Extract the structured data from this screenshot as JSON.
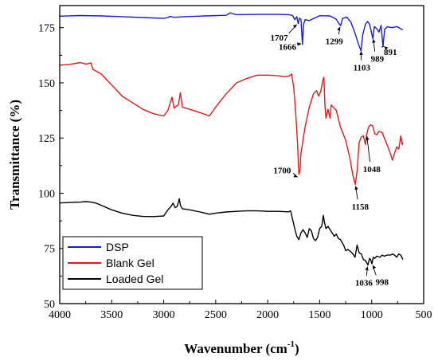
{
  "chart_data": {
    "type": "line",
    "xlabel": "Wavenumber (cm",
    "xlabel_sup": "-1",
    "xlabel_tail": ")",
    "ylabel": "Transmittance (%)",
    "xlim": [
      4000,
      500
    ],
    "ylim": [
      50,
      185
    ],
    "x_ticks": [
      4000,
      3500,
      3000,
      2500,
      2000,
      1500,
      1000,
      500
    ],
    "y_ticks": [
      50,
      75,
      100,
      125,
      150,
      175
    ],
    "grid": false,
    "legend_position": "bottom-left",
    "series": [
      {
        "name": "DSP",
        "color": "#1a1ad6",
        "points": [
          [
            4000,
            180.2
          ],
          [
            3800,
            180.5
          ],
          [
            3600,
            180.3
          ],
          [
            3400,
            180.0
          ],
          [
            3200,
            179.6
          ],
          [
            3000,
            179.2
          ],
          [
            2960,
            179.6
          ],
          [
            2940,
            180.1
          ],
          [
            2900,
            179.7
          ],
          [
            2800,
            180.0
          ],
          [
            2600,
            180.3
          ],
          [
            2400,
            180.6
          ],
          [
            2360,
            181.7
          ],
          [
            2340,
            181.4
          ],
          [
            2300,
            180.9
          ],
          [
            2100,
            181.0
          ],
          [
            1900,
            181.0
          ],
          [
            1800,
            180.9
          ],
          [
            1760,
            180.5
          ],
          [
            1740,
            178.6
          ],
          [
            1720,
            180.0
          ],
          [
            1707,
            176.8
          ],
          [
            1695,
            179.3
          ],
          [
            1680,
            178.8
          ],
          [
            1666,
            167.4
          ],
          [
            1655,
            176.5
          ],
          [
            1640,
            178.6
          ],
          [
            1600,
            178.2
          ],
          [
            1500,
            180.4
          ],
          [
            1400,
            180.3
          ],
          [
            1340,
            178.8
          ],
          [
            1320,
            177.2
          ],
          [
            1299,
            175.9
          ],
          [
            1280,
            179.2
          ],
          [
            1240,
            179.8
          ],
          [
            1200,
            177.5
          ],
          [
            1160,
            172.5
          ],
          [
            1130,
            168.0
          ],
          [
            1103,
            164.5
          ],
          [
            1085,
            172.0
          ],
          [
            1060,
            176.5
          ],
          [
            1040,
            177.8
          ],
          [
            1020,
            176.6
          ],
          [
            1000,
            172.5
          ],
          [
            989,
            170.0
          ],
          [
            975,
            175.5
          ],
          [
            950,
            174.5
          ],
          [
            930,
            173.0
          ],
          [
            910,
            176.0
          ],
          [
            891,
            166.5
          ],
          [
            875,
            174.2
          ],
          [
            850,
            175.4
          ],
          [
            800,
            175.0
          ],
          [
            760,
            175.5
          ],
          [
            720,
            174.5
          ],
          [
            700,
            174.0
          ]
        ]
      },
      {
        "name": "Blank Gel",
        "color": "#e31a1c",
        "points": [
          [
            4000,
            158.0
          ],
          [
            3900,
            158.4
          ],
          [
            3800,
            159.2
          ],
          [
            3750,
            158.5
          ],
          [
            3700,
            159.0
          ],
          [
            3680,
            156.0
          ],
          [
            3600,
            154.0
          ],
          [
            3500,
            149.0
          ],
          [
            3400,
            144.0
          ],
          [
            3300,
            141.0
          ],
          [
            3200,
            138.0
          ],
          [
            3100,
            136.0
          ],
          [
            3000,
            135.0
          ],
          [
            2960,
            137.5
          ],
          [
            2920,
            143.5
          ],
          [
            2900,
            138.5
          ],
          [
            2880,
            139.5
          ],
          [
            2860,
            140.0
          ],
          [
            2840,
            145.5
          ],
          [
            2820,
            139.0
          ],
          [
            2750,
            138.0
          ],
          [
            2650,
            136.5
          ],
          [
            2560,
            135.0
          ],
          [
            2500,
            139.0
          ],
          [
            2400,
            145.0
          ],
          [
            2300,
            150.0
          ],
          [
            2200,
            152.0
          ],
          [
            2100,
            153.5
          ],
          [
            2000,
            153.5
          ],
          [
            1900,
            153.2
          ],
          [
            1850,
            152.8
          ],
          [
            1800,
            153.0
          ],
          [
            1770,
            154.0
          ],
          [
            1750,
            148.0
          ],
          [
            1730,
            136.0
          ],
          [
            1715,
            124.0
          ],
          [
            1700,
            108.5
          ],
          [
            1690,
            110.0
          ],
          [
            1680,
            118.0
          ],
          [
            1660,
            124.0
          ],
          [
            1640,
            130.0
          ],
          [
            1600,
            139.0
          ],
          [
            1560,
            145.0
          ],
          [
            1530,
            146.5
          ],
          [
            1510,
            144.0
          ],
          [
            1490,
            146.0
          ],
          [
            1470,
            151.0
          ],
          [
            1460,
            152.5
          ],
          [
            1450,
            140.0
          ],
          [
            1440,
            134.0
          ],
          [
            1420,
            138.0
          ],
          [
            1400,
            134.0
          ],
          [
            1390,
            140.0
          ],
          [
            1370,
            139.0
          ],
          [
            1340,
            137.5
          ],
          [
            1300,
            130.0
          ],
          [
            1250,
            124.0
          ],
          [
            1210,
            116.0
          ],
          [
            1180,
            108.0
          ],
          [
            1158,
            104.0
          ],
          [
            1140,
            110.0
          ],
          [
            1120,
            123.0
          ],
          [
            1100,
            125.5
          ],
          [
            1080,
            126.0
          ],
          [
            1060,
            122.0
          ],
          [
            1048,
            126.5
          ],
          [
            1030,
            130.0
          ],
          [
            1010,
            131.0
          ],
          [
            990,
            130.5
          ],
          [
            970,
            127.0
          ],
          [
            950,
            126.5
          ],
          [
            930,
            128.0
          ],
          [
            900,
            127.5
          ],
          [
            860,
            123.0
          ],
          [
            820,
            118.0
          ],
          [
            800,
            115.0
          ],
          [
            780,
            118.0
          ],
          [
            760,
            121.0
          ],
          [
            740,
            120.0
          ],
          [
            720,
            126.0
          ],
          [
            705,
            122.0
          ],
          [
            700,
            123.0
          ]
        ]
      },
      {
        "name": "Loaded Gel",
        "color": "#000000",
        "points": [
          [
            4000,
            95.6
          ],
          [
            3900,
            95.8
          ],
          [
            3800,
            96.0
          ],
          [
            3750,
            96.2
          ],
          [
            3700,
            96.0
          ],
          [
            3650,
            95.5
          ],
          [
            3600,
            94.5
          ],
          [
            3500,
            92.5
          ],
          [
            3400,
            91.0
          ],
          [
            3300,
            90.0
          ],
          [
            3200,
            89.5
          ],
          [
            3100,
            89.4
          ],
          [
            3000,
            89.7
          ],
          [
            2960,
            92.5
          ],
          [
            2930,
            94.0
          ],
          [
            2910,
            95.5
          ],
          [
            2890,
            93.5
          ],
          [
            2870,
            94.0
          ],
          [
            2850,
            97.5
          ],
          [
            2840,
            94.5
          ],
          [
            2820,
            93.0
          ],
          [
            2750,
            92.5
          ],
          [
            2650,
            91.5
          ],
          [
            2560,
            90.5
          ],
          [
            2500,
            91.0
          ],
          [
            2400,
            91.5
          ],
          [
            2300,
            91.8
          ],
          [
            2200,
            92.0
          ],
          [
            2100,
            92.0
          ],
          [
            2000,
            91.8
          ],
          [
            1900,
            91.8
          ],
          [
            1800,
            91.6
          ],
          [
            1780,
            92.0
          ],
          [
            1760,
            88.0
          ],
          [
            1740,
            84.0
          ],
          [
            1720,
            80.5
          ],
          [
            1700,
            79.0
          ],
          [
            1680,
            82.0
          ],
          [
            1660,
            83.5
          ],
          [
            1640,
            82.0
          ],
          [
            1620,
            80.0
          ],
          [
            1600,
            84.0
          ],
          [
            1580,
            83.0
          ],
          [
            1560,
            79.5
          ],
          [
            1540,
            78.5
          ],
          [
            1520,
            80.0
          ],
          [
            1500,
            84.0
          ],
          [
            1480,
            85.0
          ],
          [
            1465,
            90.0
          ],
          [
            1455,
            87.0
          ],
          [
            1440,
            84.0
          ],
          [
            1420,
            85.0
          ],
          [
            1400,
            83.5
          ],
          [
            1380,
            82.0
          ],
          [
            1360,
            80.5
          ],
          [
            1340,
            81.5
          ],
          [
            1320,
            79.5
          ],
          [
            1300,
            79.0
          ],
          [
            1270,
            76.5
          ],
          [
            1250,
            74.0
          ],
          [
            1230,
            74.5
          ],
          [
            1200,
            73.5
          ],
          [
            1180,
            72.5
          ],
          [
            1160,
            71.0
          ],
          [
            1140,
            76.5
          ],
          [
            1120,
            73.0
          ],
          [
            1100,
            72.5
          ],
          [
            1080,
            70.0
          ],
          [
            1060,
            69.5
          ],
          [
            1036,
            67.5
          ],
          [
            1020,
            70.5
          ],
          [
            1010,
            70.0
          ],
          [
            998,
            68.0
          ],
          [
            985,
            71.0
          ],
          [
            970,
            70.5
          ],
          [
            950,
            71.5
          ],
          [
            920,
            71.0
          ],
          [
            900,
            72.0
          ],
          [
            880,
            71.5
          ],
          [
            850,
            72.0
          ],
          [
            820,
            72.0
          ],
          [
            800,
            72.5
          ],
          [
            780,
            72.0
          ],
          [
            760,
            71.0
          ],
          [
            740,
            72.5
          ],
          [
            720,
            72.0
          ],
          [
            705,
            70.5
          ],
          [
            700,
            70.0
          ]
        ]
      }
    ],
    "annotations": [
      {
        "text": "1707",
        "target": [
          1707,
          176.8
        ],
        "label_at": [
          1890,
          170.5
        ]
      },
      {
        "text": "1666",
        "target": [
          1666,
          168.0
        ],
        "label_at": [
          1810,
          166.5
        ]
      },
      {
        "text": "1299",
        "target": [
          1299,
          176.0
        ],
        "label_at": [
          1360,
          169.0
        ]
      },
      {
        "text": "1103",
        "target": [
          1103,
          165.0
        ],
        "label_at": [
          1095,
          157.0
        ]
      },
      {
        "text": "989",
        "target": [
          989,
          170.5
        ],
        "label_at": [
          945,
          161.0
        ]
      },
      {
        "text": "891",
        "target": [
          891,
          167.0
        ],
        "label_at": [
          820,
          164.0
        ]
      },
      {
        "text": "1700",
        "target": [
          1700,
          107.0
        ],
        "label_at": [
          1860,
          110.5
        ]
      },
      {
        "text": "1158",
        "target": [
          1158,
          104.0
        ],
        "label_at": [
          1110,
          94.0
        ]
      },
      {
        "text": "1048",
        "target": [
          1048,
          126.5
        ],
        "label_at": [
          1000,
          111.0
        ]
      },
      {
        "text": "1036",
        "target": [
          1036,
          67.5
        ],
        "label_at": [
          1075,
          59.5
        ]
      },
      {
        "text": "998",
        "target": [
          998,
          68.0
        ],
        "label_at": [
          900,
          60.0
        ]
      }
    ]
  }
}
